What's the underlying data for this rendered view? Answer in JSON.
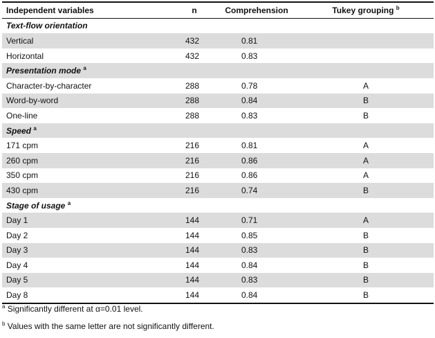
{
  "table": {
    "headers": [
      "Independent variables",
      "n",
      "Comprehension",
      "Tukey grouping"
    ],
    "header_superscripts": [
      "",
      "",
      "",
      "b"
    ],
    "sections": [
      {
        "title": "Text-flow orientation",
        "superscript": "",
        "rows": [
          {
            "label": "Vertical",
            "n": "432",
            "comprehension": "0.81",
            "tukey": ""
          },
          {
            "label": "Horizontal",
            "n": "432",
            "comprehension": "0.83",
            "tukey": ""
          }
        ]
      },
      {
        "title": "Presentation mode",
        "superscript": "a",
        "rows": [
          {
            "label": "Character-by-character",
            "n": "288",
            "comprehension": "0.78",
            "tukey": "A"
          },
          {
            "label": "Word-by-word",
            "n": "288",
            "comprehension": "0.84",
            "tukey": "B"
          },
          {
            "label": "One-line",
            "n": "288",
            "comprehension": "0.83",
            "tukey": "B"
          }
        ]
      },
      {
        "title": "Speed",
        "superscript": "a",
        "rows": [
          {
            "label": "171 cpm",
            "n": "216",
            "comprehension": "0.81",
            "tukey": "A"
          },
          {
            "label": "260 cpm",
            "n": "216",
            "comprehension": "0.86",
            "tukey": "A"
          },
          {
            "label": "350 cpm",
            "n": "216",
            "comprehension": "0.86",
            "tukey": "A"
          },
          {
            "label": "430 cpm",
            "n": "216",
            "comprehension": "0.74",
            "tukey": "B"
          }
        ]
      },
      {
        "title": "Stage of usage",
        "superscript": "a",
        "rows": [
          {
            "label": "Day 1",
            "n": "144",
            "comprehension": "0.71",
            "tukey": "A"
          },
          {
            "label": "Day 2",
            "n": "144",
            "comprehension": "0.85",
            "tukey": "B"
          },
          {
            "label": "Day 3",
            "n": "144",
            "comprehension": "0.83",
            "tukey": "B"
          },
          {
            "label": "Day 4",
            "n": "144",
            "comprehension": "0.84",
            "tukey": "B"
          },
          {
            "label": "Day 5",
            "n": "144",
            "comprehension": "0.83",
            "tukey": "B"
          },
          {
            "label": "Day 8",
            "n": "144",
            "comprehension": "0.84",
            "tukey": "B"
          }
        ]
      }
    ]
  },
  "footnotes": [
    {
      "mark": "a",
      "text": "Significantly different at α=0.01 level."
    },
    {
      "mark": "b",
      "text": "Values with the same letter are not significantly different."
    }
  ],
  "colors": {
    "shaded_row": "#dcdcdc",
    "rule": "#111111"
  }
}
